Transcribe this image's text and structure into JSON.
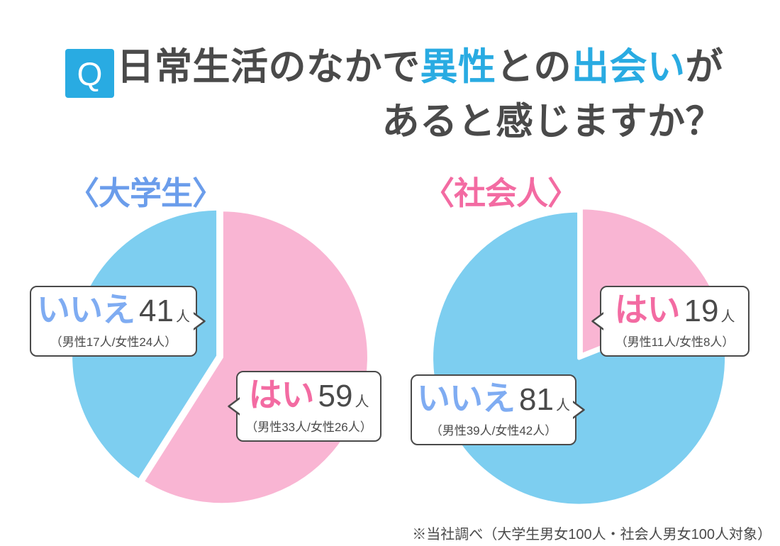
{
  "header": {
    "badge": "Q",
    "title_parts": [
      {
        "text": "日常生活のなかで",
        "highlight": false
      },
      {
        "text": "異性",
        "highlight": true
      },
      {
        "text": "との",
        "highlight": false
      },
      {
        "text": "出会い",
        "highlight": true
      },
      {
        "text": "が",
        "highlight": false
      }
    ],
    "title_line2": "あると感じますか？"
  },
  "colors": {
    "accent_blue": "#29ABE2",
    "pie_blue": "#7DCEF0",
    "pie_pink": "#F9B5D3",
    "label_blue": "#6B9DEB",
    "label_pink": "#F36BA2",
    "callout_blue": "#7FACF2",
    "callout_pink": "#F36BA2",
    "text_dark": "#4A4A4A"
  },
  "charts": [
    {
      "id": "students",
      "label": "〈大学生〉",
      "callouts": [
        {
          "answer": "いいえ",
          "count": "41",
          "unit": "人",
          "breakdown": "（男性17人/女性24人）",
          "tone": "blue"
        },
        {
          "answer": "はい",
          "count": "59",
          "unit": "人",
          "breakdown": "（男性33人/女性26人）",
          "tone": "pink"
        }
      ]
    },
    {
      "id": "workers",
      "label": "〈社会人〉",
      "callouts": [
        {
          "answer": "はい",
          "count": "19",
          "unit": "人",
          "breakdown": "（男性11人/女性8人）",
          "tone": "pink"
        },
        {
          "answer": "いいえ",
          "count": "81",
          "unit": "人",
          "breakdown": "（男性39人/女性42人）",
          "tone": "blue"
        }
      ]
    }
  ],
  "chart_data": [
    {
      "type": "pie",
      "title": "〈大学生〉",
      "total": 100,
      "start_angle_deg": 0,
      "direction": "clockwise",
      "slices": [
        {
          "label": "はい",
          "value": 59,
          "color": "#F9B5D3",
          "male": 33,
          "female": 26
        },
        {
          "label": "いいえ",
          "value": 41,
          "color": "#7DCEF0",
          "male": 17,
          "female": 24
        }
      ]
    },
    {
      "type": "pie",
      "title": "〈社会人〉",
      "total": 100,
      "start_angle_deg": 0,
      "direction": "clockwise",
      "slices": [
        {
          "label": "はい",
          "value": 19,
          "color": "#F9B5D3",
          "male": 11,
          "female": 8
        },
        {
          "label": "いいえ",
          "value": 81,
          "color": "#7DCEF0",
          "male": 39,
          "female": 42
        }
      ]
    }
  ],
  "footer": {
    "note": "※当社調べ（大学生男女100人・社会人男女100人対象）"
  }
}
